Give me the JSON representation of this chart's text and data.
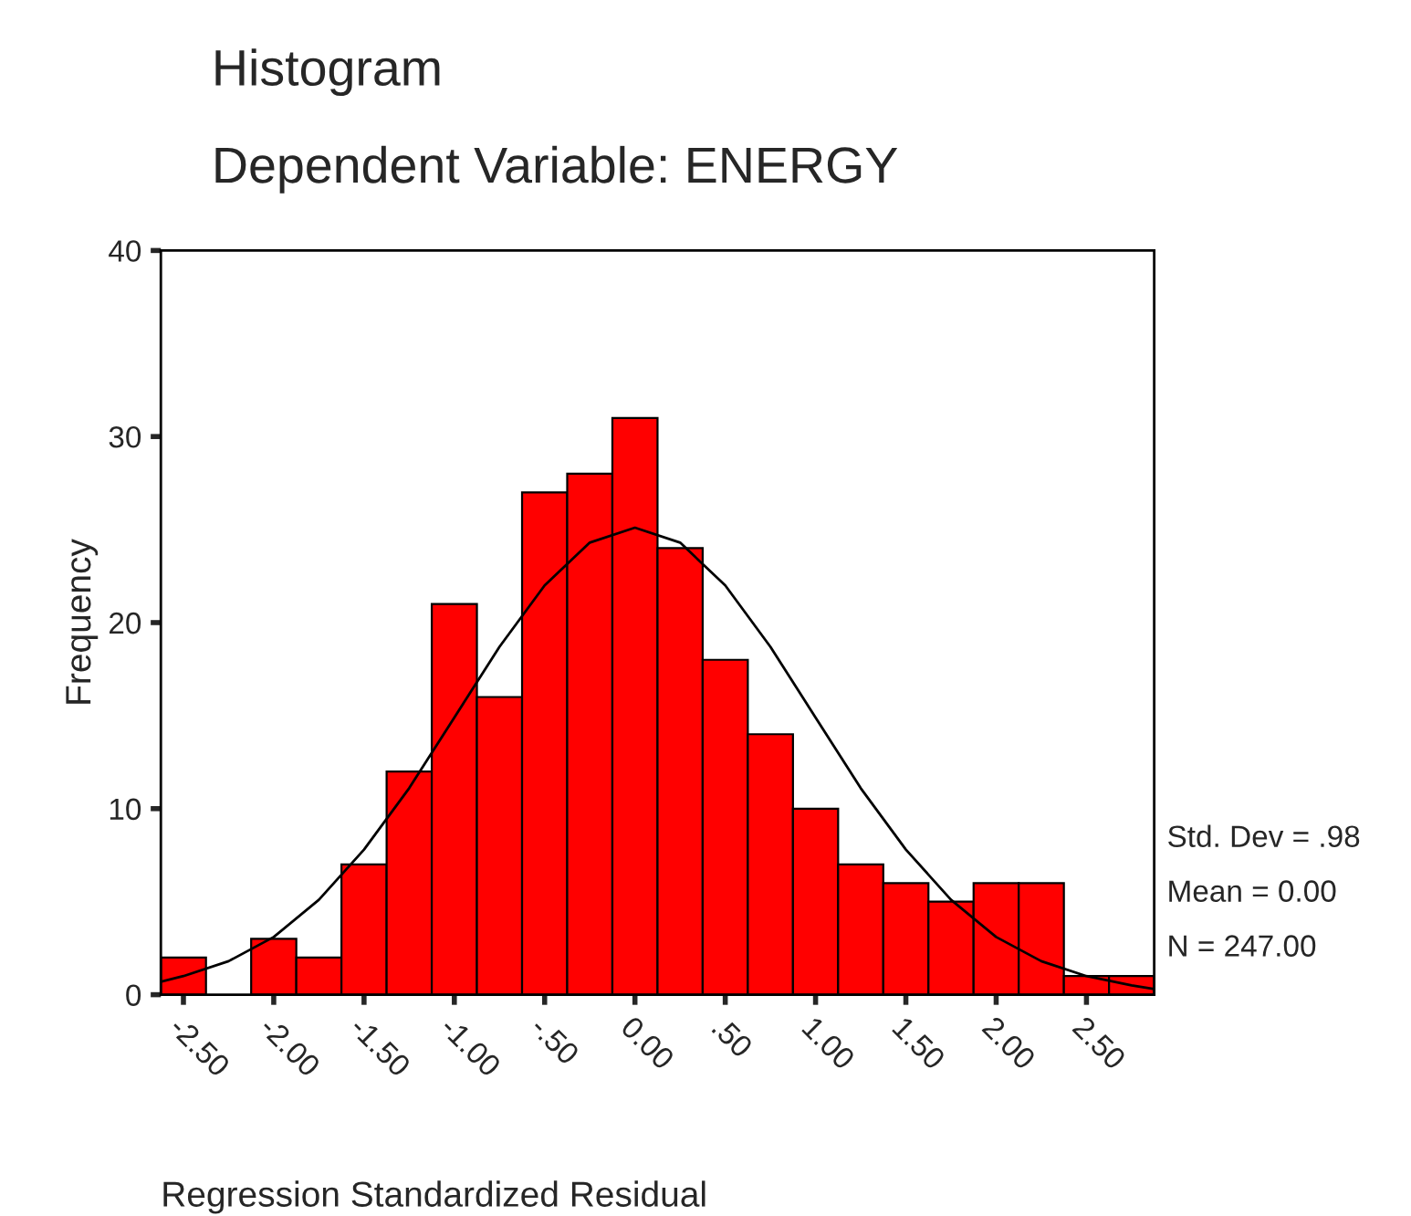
{
  "chart_data": {
    "type": "histogram",
    "title": "Histogram",
    "subtitle": "Dependent Variable: ENERGY",
    "xlabel": "Regression Standardized Residual",
    "ylabel": "Frequency",
    "bins": [
      -2.625,
      -2.375,
      -2.125,
      -1.875,
      -1.625,
      -1.375,
      -1.125,
      -0.875,
      -0.625,
      -0.375,
      -0.125,
      0.125,
      0.375,
      0.625,
      0.875,
      1.125,
      1.375,
      1.625,
      1.875,
      2.125,
      2.375,
      2.625,
      2.875
    ],
    "values": [
      2,
      0,
      3,
      2,
      7,
      12,
      21,
      16,
      27,
      28,
      31,
      24,
      18,
      14,
      10,
      7,
      6,
      5,
      6,
      6,
      1,
      1
    ],
    "color": "#ff0000",
    "series": [
      {
        "type": "line",
        "color": "#000000",
        "x": [
          -2.625,
          -2.5,
          -2.25,
          -2,
          -1.75,
          -1.5,
          -1.25,
          -1,
          -0.75,
          -0.5,
          -0.25,
          0,
          0.25,
          0.5,
          0.75,
          1,
          1.25,
          1.5,
          1.75,
          2,
          2.25,
          2.5,
          2.75,
          2.875
        ],
        "values": [
          0.7,
          1,
          1.8,
          3.1,
          5.1,
          7.8,
          11.1,
          14.9,
          18.7,
          22,
          24.3,
          25.1,
          24.3,
          22,
          18.7,
          14.9,
          11.1,
          7.8,
          5.1,
          3.1,
          1.8,
          1,
          0.5,
          0.3
        ]
      }
    ],
    "xlim": [
      -2.625,
      2.875
    ],
    "ylim": [
      0,
      40
    ],
    "xticks": [
      {
        "value": -2.5,
        "label": "-2.50"
      },
      {
        "value": -2,
        "label": "-2.00"
      },
      {
        "value": -1.5,
        "label": "-1.50"
      },
      {
        "value": -1,
        "label": "-1.00"
      },
      {
        "value": -0.5,
        "label": "-.50"
      },
      {
        "value": 0,
        "label": "0.00"
      },
      {
        "value": 0.5,
        "label": ".50"
      },
      {
        "value": 1,
        "label": "1.00"
      },
      {
        "value": 1.5,
        "label": "1.50"
      },
      {
        "value": 2,
        "label": "2.00"
      },
      {
        "value": 2.5,
        "label": "2.50"
      }
    ],
    "yticks": [
      0,
      10,
      20,
      30,
      40
    ],
    "grid": false,
    "annotations": [
      "Std. Dev = .98",
      "Mean = 0.00",
      "N = 247.00"
    ]
  }
}
